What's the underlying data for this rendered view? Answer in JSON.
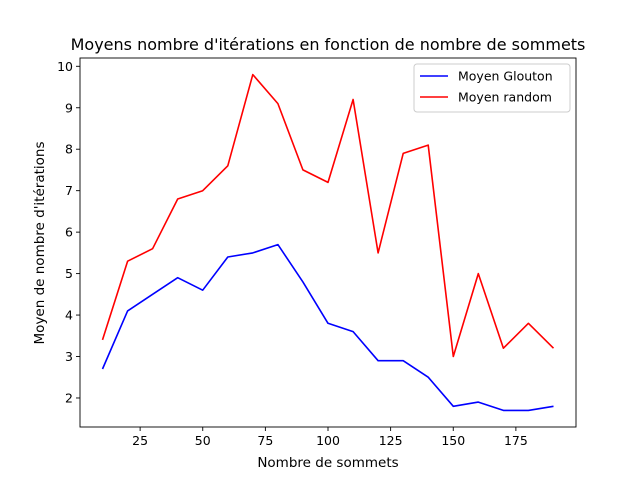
{
  "chart_data": {
    "type": "line",
    "title": "Moyens nombre d'itérations en fonction de nombre de sommets",
    "xlabel": "Nombre de sommets",
    "ylabel": "Moyen de nombre d'itérations",
    "xlim": [
      1,
      199
    ],
    "ylim": [
      1.3,
      10.2
    ],
    "xticks": [
      25,
      50,
      75,
      100,
      125,
      150,
      175
    ],
    "yticks": [
      2,
      3,
      4,
      5,
      6,
      7,
      8,
      9,
      10
    ],
    "grid": false,
    "legend_position": "top-right",
    "x": [
      10,
      20,
      30,
      40,
      50,
      60,
      70,
      80,
      90,
      100,
      110,
      120,
      130,
      140,
      150,
      160,
      170,
      180,
      190
    ],
    "series": [
      {
        "name": "Moyen Glouton",
        "color": "#0000ff",
        "values": [
          2.7,
          4.1,
          4.5,
          4.9,
          4.6,
          5.4,
          5.5,
          5.7,
          4.8,
          3.8,
          3.6,
          2.9,
          2.9,
          2.5,
          1.8,
          1.9,
          1.7,
          1.7,
          1.8
        ]
      },
      {
        "name": "Moyen random",
        "color": "#ff0000",
        "values": [
          3.4,
          5.3,
          5.6,
          6.8,
          7.0,
          7.6,
          9.8,
          9.1,
          7.5,
          7.2,
          9.2,
          5.5,
          7.9,
          8.1,
          3.0,
          5.0,
          3.2,
          3.8,
          3.2
        ]
      }
    ]
  }
}
